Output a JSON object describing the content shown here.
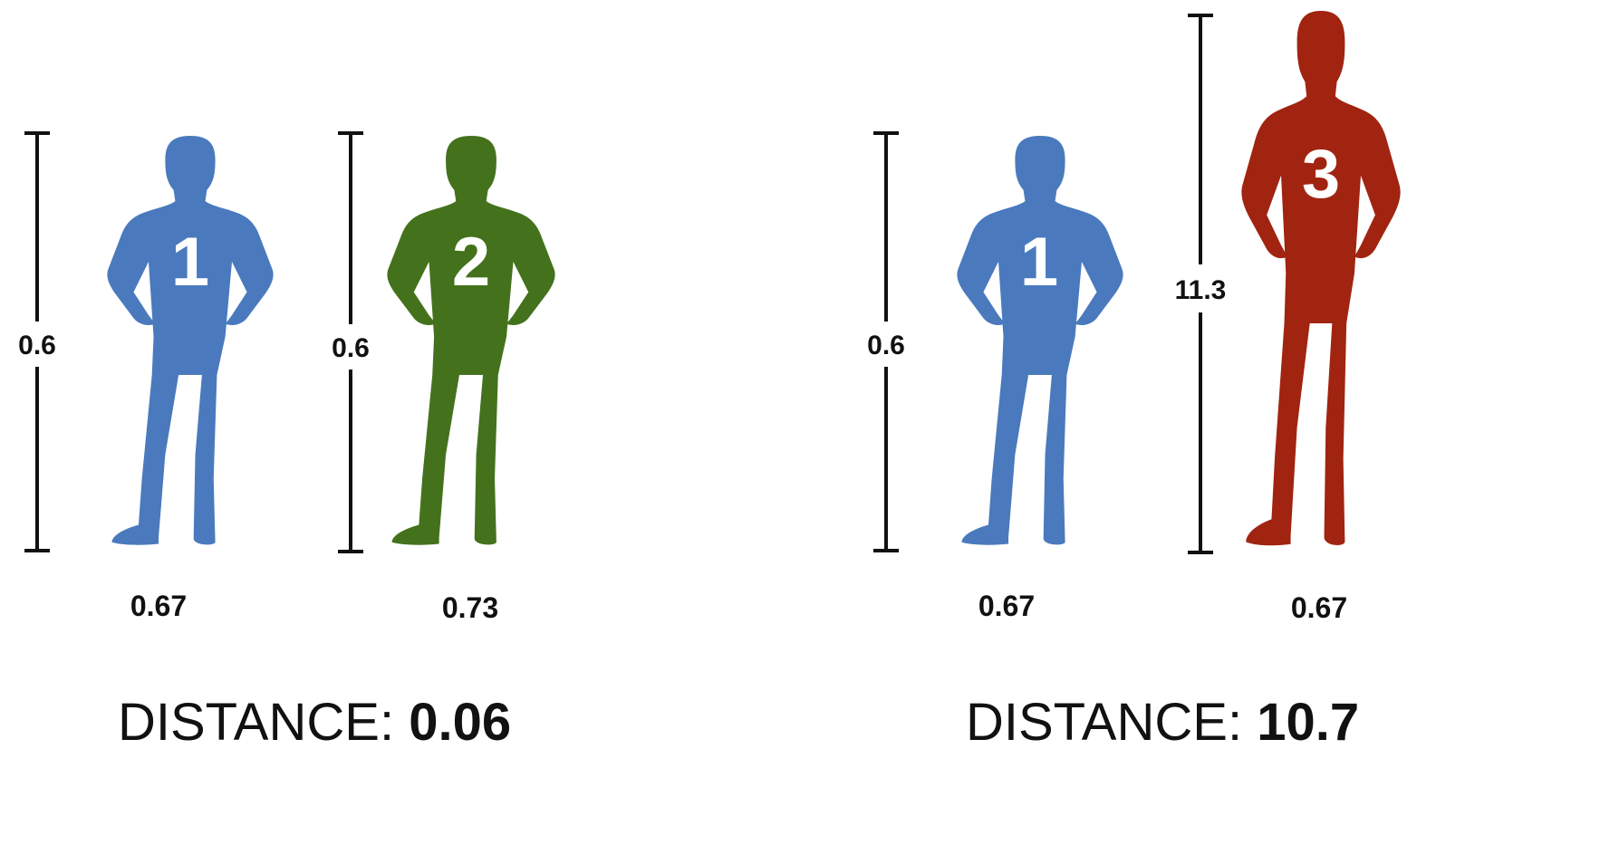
{
  "colors": {
    "person_1": "#4a7abd",
    "person_2": "#44721c",
    "person_3": "#a02410",
    "scale_bar": "#111111"
  },
  "comparisons": [
    {
      "people": [
        {
          "number": "1",
          "color_key": "person_1",
          "height_label": "0.6",
          "width_label": "0.67"
        },
        {
          "number": "2",
          "color_key": "person_2",
          "height_label": "0.6",
          "width_label": "0.73"
        }
      ],
      "distance_prefix": "DISTANCE:",
      "distance_value": "0.06"
    },
    {
      "people": [
        {
          "number": "1",
          "color_key": "person_1",
          "height_label": "0.6",
          "width_label": "0.67"
        },
        {
          "number": "3",
          "color_key": "person_3",
          "height_label": "11.3",
          "width_label": "0.67"
        }
      ],
      "distance_prefix": "DISTANCE:",
      "distance_value": "10.7"
    }
  ]
}
